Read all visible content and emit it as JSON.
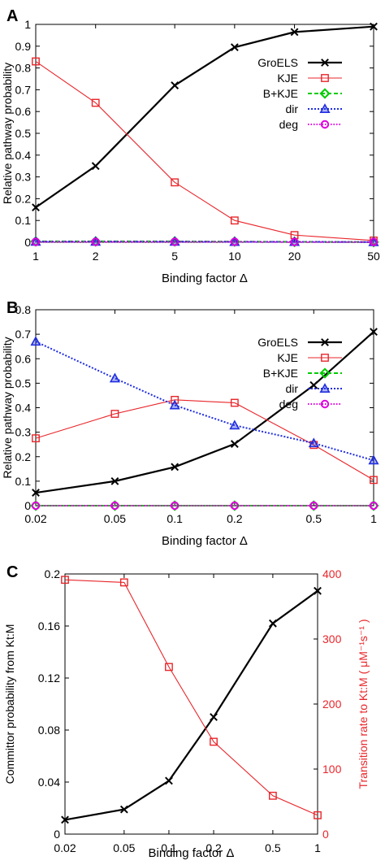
{
  "chart_data": [
    {
      "type": "line",
      "panel_label": "A",
      "xlabel": "Binding factor  Δ",
      "ylabel": "Relative pathway probability",
      "xscale": "log",
      "x": [
        1,
        2,
        5,
        10,
        20,
        50
      ],
      "x_ticks": [
        "1",
        "2",
        "5",
        "10",
        "20",
        "50"
      ],
      "ylim": [
        0,
        1
      ],
      "y_ticks": [
        "0",
        "0.1",
        "0.2",
        "0.3",
        "0.4",
        "0.5",
        "0.6",
        "0.7",
        "0.8",
        "0.9",
        "1"
      ],
      "legend_position": "top-right",
      "series": [
        {
          "name": "GroELS",
          "values": [
            0.16,
            0.35,
            0.72,
            0.895,
            0.965,
            0.99
          ],
          "color": "#000000",
          "marker": "cross"
        },
        {
          "name": "KJE",
          "values": [
            0.83,
            0.64,
            0.275,
            0.1,
            0.033,
            0.008
          ],
          "color": "#e8262b",
          "marker": "square"
        },
        {
          "name": "B+KJE",
          "values": [
            0.004,
            0.004,
            0.004,
            0.003,
            0.002,
            0.001
          ],
          "color": "#00cc00",
          "marker": "diamond"
        },
        {
          "name": "dir",
          "values": [
            0.003,
            0.003,
            0.003,
            0.002,
            0.002,
            0.001
          ],
          "color": "#1f2de0",
          "marker": "triangle"
        },
        {
          "name": "deg",
          "values": [
            0.002,
            0.002,
            0.002,
            0.002,
            0.001,
            0.001
          ],
          "color": "#e000e0",
          "marker": "circle"
        }
      ]
    },
    {
      "type": "line",
      "panel_label": "B",
      "xlabel": "Binding factor  Δ",
      "ylabel": "Relative pathway probability",
      "xscale": "log",
      "x": [
        0.02,
        0.05,
        0.1,
        0.2,
        0.5,
        1
      ],
      "x_ticks": [
        "0.02",
        "0.05",
        "0.1",
        "0.2",
        "0.5",
        "1"
      ],
      "ylim": [
        0,
        0.8
      ],
      "y_ticks": [
        "0",
        "0.1",
        "0.2",
        "0.3",
        "0.4",
        "0.5",
        "0.6",
        "0.7",
        "0.8"
      ],
      "legend_position": "top-right",
      "series": [
        {
          "name": "GroELS",
          "values": [
            0.053,
            0.1,
            0.158,
            0.252,
            0.492,
            0.71
          ],
          "color": "#000000",
          "marker": "cross"
        },
        {
          "name": "KJE",
          "values": [
            0.275,
            0.375,
            0.432,
            0.42,
            0.248,
            0.105
          ],
          "color": "#e8262b",
          "marker": "square"
        },
        {
          "name": "B+KJE",
          "values": [
            0.0,
            0.0,
            0.0,
            0.0,
            0.0,
            0.0
          ],
          "color": "#00cc00",
          "marker": "diamond"
        },
        {
          "name": "dir",
          "values": [
            0.67,
            0.52,
            0.41,
            0.328,
            0.255,
            0.185
          ],
          "color": "#1f2de0",
          "marker": "triangle"
        },
        {
          "name": "deg",
          "values": [
            0.0,
            0.0,
            0.0,
            0.0,
            0.0,
            0.0
          ],
          "color": "#e000e0",
          "marker": "circle"
        }
      ]
    },
    {
      "type": "line",
      "panel_label": "C",
      "xlabel": "Binding factor  Δ",
      "ylabel": "Committor probability from Kt:M",
      "y2label": "Transition rate to Kt:M (  μM⁻¹s⁻¹ )",
      "xscale": "log",
      "x": [
        0.02,
        0.05,
        0.1,
        0.2,
        0.5,
        1
      ],
      "x_ticks": [
        "0.02",
        "0.05",
        "0.1",
        "0.2",
        "0.5",
        "1"
      ],
      "ylim": [
        0,
        0.2
      ],
      "y_ticks": [
        "0",
        "0.04",
        "0.08",
        "0.12",
        "0.16",
        "0.2"
      ],
      "y2lim": [
        0,
        400
      ],
      "y2_ticks": [
        "0",
        "100",
        "200",
        "300",
        "400"
      ],
      "series": [
        {
          "values": [
            0.011,
            0.019,
            0.041,
            0.09,
            0.162,
            0.187
          ],
          "color": "#000000",
          "marker": "cross",
          "axis": "left"
        },
        {
          "values": [
            391,
            387,
            257,
            142,
            59,
            29
          ],
          "color": "#e8262b",
          "marker": "square",
          "axis": "right"
        }
      ]
    }
  ]
}
